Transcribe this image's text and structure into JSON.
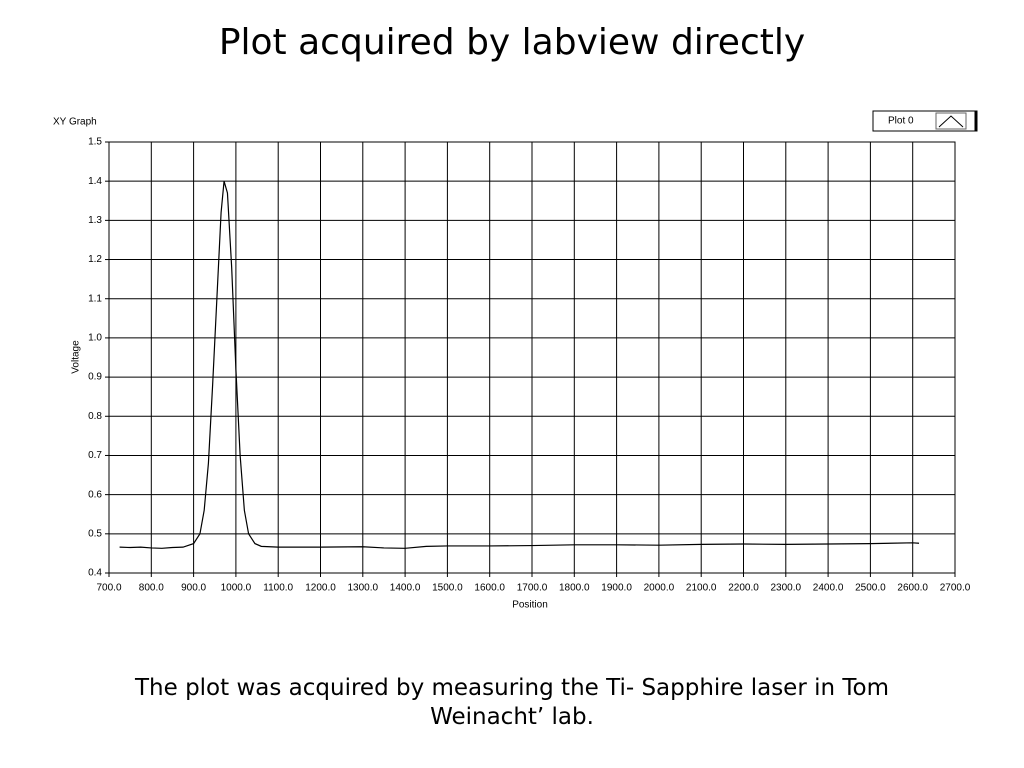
{
  "slide": {
    "title": "Plot acquired by labview directly",
    "caption": "The plot was acquired by measuring the Ti- Sapphire laser in Tom Weinacht’ lab."
  },
  "chart_data": {
    "type": "line",
    "label": "XY Graph",
    "x_label": "Position",
    "y_label": "Voltage",
    "x": [
      725,
      750,
      775,
      800,
      825,
      850,
      875,
      900,
      915,
      925,
      935,
      945,
      955,
      965,
      972,
      980,
      990,
      1000,
      1010,
      1020,
      1030,
      1045,
      1060,
      1100,
      1200,
      1300,
      1350,
      1400,
      1450,
      1500,
      1600,
      1700,
      1800,
      1900,
      2000,
      2100,
      2200,
      2300,
      2400,
      2500,
      2600,
      2615
    ],
    "series": [
      {
        "name": "Plot 0",
        "color": "#000000",
        "values": [
          0.466,
          0.465,
          0.466,
          0.464,
          0.463,
          0.465,
          0.466,
          0.475,
          0.5,
          0.56,
          0.68,
          0.88,
          1.1,
          1.32,
          1.4,
          1.37,
          1.18,
          0.92,
          0.7,
          0.56,
          0.5,
          0.475,
          0.468,
          0.466,
          0.466,
          0.467,
          0.464,
          0.463,
          0.468,
          0.469,
          0.469,
          0.47,
          0.472,
          0.472,
          0.471,
          0.473,
          0.474,
          0.473,
          0.474,
          0.475,
          0.477,
          0.476
        ]
      }
    ],
    "xlim": [
      700,
      2700
    ],
    "xticks": [
      {
        "value": 700,
        "label": "700.0"
      },
      {
        "value": 800,
        "label": "800.0"
      },
      {
        "value": 900,
        "label": "900.0"
      },
      {
        "value": 1000,
        "label": "1000.0"
      },
      {
        "value": 1100,
        "label": "1100.0"
      },
      {
        "value": 1200,
        "label": "1200.0"
      },
      {
        "value": 1300,
        "label": "1300.0"
      },
      {
        "value": 1400,
        "label": "1400.0"
      },
      {
        "value": 1500,
        "label": "1500.0"
      },
      {
        "value": 1600,
        "label": "1600.0"
      },
      {
        "value": 1700,
        "label": "1700.0"
      },
      {
        "value": 1800,
        "label": "1800.0"
      },
      {
        "value": 1900,
        "label": "1900.0"
      },
      {
        "value": 2000,
        "label": "2000.0"
      },
      {
        "value": 2100,
        "label": "2100.0"
      },
      {
        "value": 2200,
        "label": "2200.0"
      },
      {
        "value": 2300,
        "label": "2300.0"
      },
      {
        "value": 2400,
        "label": "2400.0"
      },
      {
        "value": 2500,
        "label": "2500.0"
      },
      {
        "value": 2600,
        "label": "2600.0"
      },
      {
        "value": 2700,
        "label": "2700.0"
      }
    ],
    "ylim": [
      0.4,
      1.5
    ],
    "yticks": [
      0.4,
      0.5,
      0.6,
      0.7,
      0.8,
      0.9,
      {
        "value": 1,
        "label": "1.0"
      },
      1.1,
      1.2,
      1.3,
      1.4,
      1.5
    ],
    "grid": true,
    "legend": "top-right"
  }
}
